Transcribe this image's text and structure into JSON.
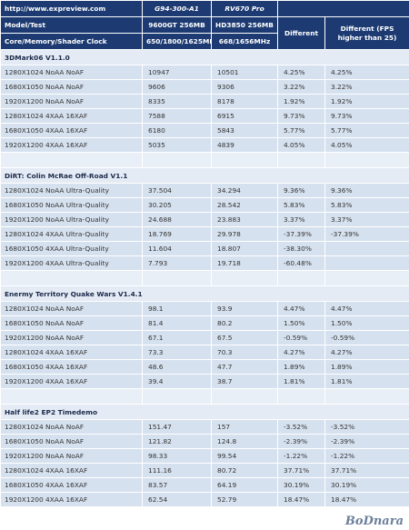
{
  "header": {
    "site": "http://www.expreview.com",
    "gpu_a": "G94-300-A1",
    "gpu_b": "RV670 Pro",
    "model_label": "Model/Test",
    "card_a": "9600GT 256MB",
    "card_b": "HD3850 256MB",
    "different": "Different",
    "different_fps": "Different (FPS higher than 25)",
    "clock_label": "Core/Memory/Shader Clock",
    "clock_a": "650/1800/1625MHz",
    "clock_b": "668/1656MHz"
  },
  "sections": [
    {
      "title": "3DMark06 V1.1.0",
      "rows": [
        [
          "1280X1024 NoAA NoAF",
          "10947",
          "10501",
          "4.25%",
          "4.25%"
        ],
        [
          "1680X1050 NoAA NoAF",
          "9606",
          "9306",
          "3.22%",
          "3.22%"
        ],
        [
          "1920X1200 NoAA NoAF",
          "8335",
          "8178",
          "1.92%",
          "1.92%"
        ],
        [
          "1280X1024 4XAA 16XAF",
          "7588",
          "6915",
          "9.73%",
          "9.73%"
        ],
        [
          "1680X1050 4XAA 16XAF",
          "6180",
          "5843",
          "5.77%",
          "5.77%"
        ],
        [
          "1920X1200 4XAA 16XAF",
          "5035",
          "4839",
          "4.05%",
          "4.05%"
        ]
      ]
    },
    {
      "title": "DiRT: Colin McRae Off-Road V1.1",
      "rows": [
        [
          "1280X1024 NoAA Ultra-Quality",
          "37.504",
          "34.294",
          "9.36%",
          "9.36%"
        ],
        [
          "1680X1050 NoAA Ultra-Quality",
          "30.205",
          "28.542",
          "5.83%",
          "5.83%"
        ],
        [
          "1920X1200 NoAA Ultra-Quality",
          "24.688",
          "23.883",
          "3.37%",
          "3.37%"
        ],
        [
          "1280X1024 4XAA Ultra-Quality",
          "18.769",
          "29.978",
          "-37.39%",
          "-37.39%"
        ],
        [
          "1680X1050 4XAA Ultra-Quality",
          "11.604",
          "18.807",
          "-38.30%"
        ],
        [
          "1920X1200 4XAA Ultra-Quality",
          "7.793",
          "19.718",
          "-60.48%"
        ]
      ]
    },
    {
      "title": "Enermy Territory Quake Wars V1.4.1",
      "rows": [
        [
          "1280X1024 NoAA NoAF",
          "98.1",
          "93.9",
          "4.47%",
          "4.47%"
        ],
        [
          "1680X1050 NoAA NoAF",
          "81.4",
          "80.2",
          "1.50%",
          "1.50%"
        ],
        [
          "1920X1200 NoAA NoAF",
          "67.1",
          "67.5",
          "-0.59%",
          "-0.59%"
        ],
        [
          "1280X1024 4XAA 16XAF",
          "73.3",
          "70.3",
          "4.27%",
          "4.27%"
        ],
        [
          "1680X1050 4XAA 16XAF",
          "48.6",
          "47.7",
          "1.89%",
          "1.89%"
        ],
        [
          "1920X1200 4XAA 16XAF",
          "39.4",
          "38.7",
          "1.81%",
          "1.81%"
        ]
      ]
    },
    {
      "title": "Half life2 EP2 Timedemo",
      "rows": [
        [
          "1280X1024 NoAA NoAF",
          "151.47",
          "157",
          "-3.52%",
          "-3.52%"
        ],
        [
          "1680X1050 NoAA NoAF",
          "121.82",
          "124.8",
          "-2.39%",
          "-2.39%"
        ],
        [
          "1920X1200 NoAA NoAF",
          "98.33",
          "99.54",
          "-1.22%",
          "-1.22%"
        ],
        [
          "1280X1024 4XAA 16XAF",
          "111.16",
          "80.72",
          "37.71%",
          "37.71%"
        ],
        [
          "1680X1050 4XAA 16XAF",
          "83.57",
          "64.19",
          "30.19%",
          "30.19%"
        ],
        [
          "1920X1200 4XAA 16XAF",
          "62.54",
          "52.79",
          "18.47%",
          "18.47%"
        ]
      ]
    }
  ],
  "watermark": "BoDnara"
}
